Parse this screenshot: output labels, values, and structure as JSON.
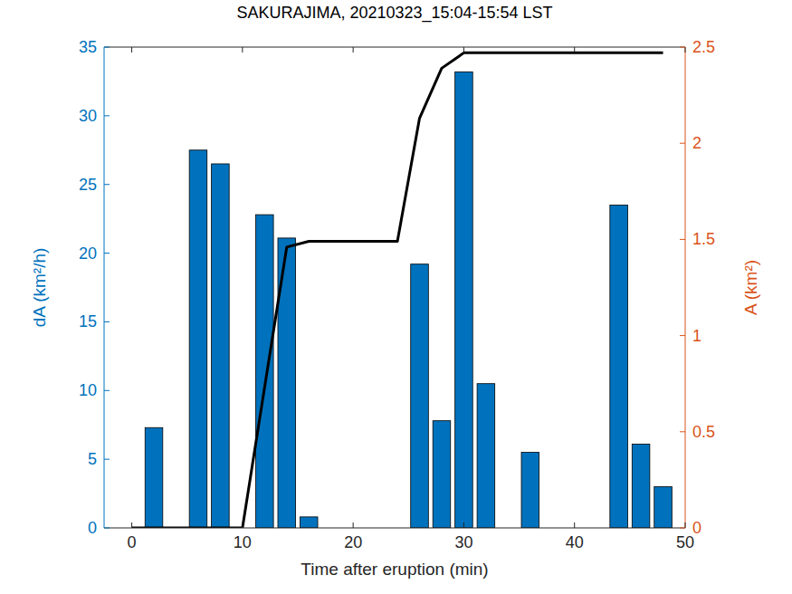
{
  "chart_data": {
    "type": "bar",
    "title": "SAKURAJIMA, 20210323_15:04-15:54 LST",
    "x_label": "Time after eruption (min)",
    "y_label": "dA (km²/h)",
    "y2_label": "A (km²)",
    "x": [
      0,
      2,
      4,
      6,
      8,
      10,
      12,
      14,
      16,
      18,
      20,
      22,
      24,
      26,
      28,
      30,
      32,
      34,
      36,
      38,
      40,
      42,
      44,
      46,
      48
    ],
    "series": [
      {
        "name": "dA",
        "type": "bar",
        "color": "#0072bd",
        "axis": "y",
        "values": [
          0,
          7.3,
          0,
          27.5,
          26.5,
          0,
          22.8,
          21.1,
          0.8,
          0,
          0,
          0,
          0,
          19.2,
          7.8,
          33.2,
          10.5,
          0,
          5.5,
          0,
          0,
          0,
          23.5,
          6.1,
          3.0
        ]
      },
      {
        "name": "A",
        "type": "line",
        "color": "#000000",
        "axis": "y2",
        "values": [
          0,
          0,
          0,
          0,
          0,
          0,
          0.73,
          1.46,
          1.49,
          1.49,
          1.49,
          1.49,
          1.49,
          2.13,
          2.39,
          2.47,
          2.47,
          2.47,
          2.47,
          2.47,
          2.47,
          2.47,
          2.47,
          2.47,
          2.47
        ]
      }
    ],
    "xlim": [
      -2.5,
      50
    ],
    "xticks": [
      0,
      10,
      20,
      30,
      40,
      50
    ],
    "ylim": [
      0,
      35
    ],
    "yticks": [
      0,
      5,
      10,
      15,
      20,
      25,
      30,
      35
    ],
    "y2lim": [
      0,
      2.5
    ],
    "y2ticks": [
      0,
      0.5,
      1,
      1.5,
      2,
      2.5
    ],
    "grid": false
  }
}
